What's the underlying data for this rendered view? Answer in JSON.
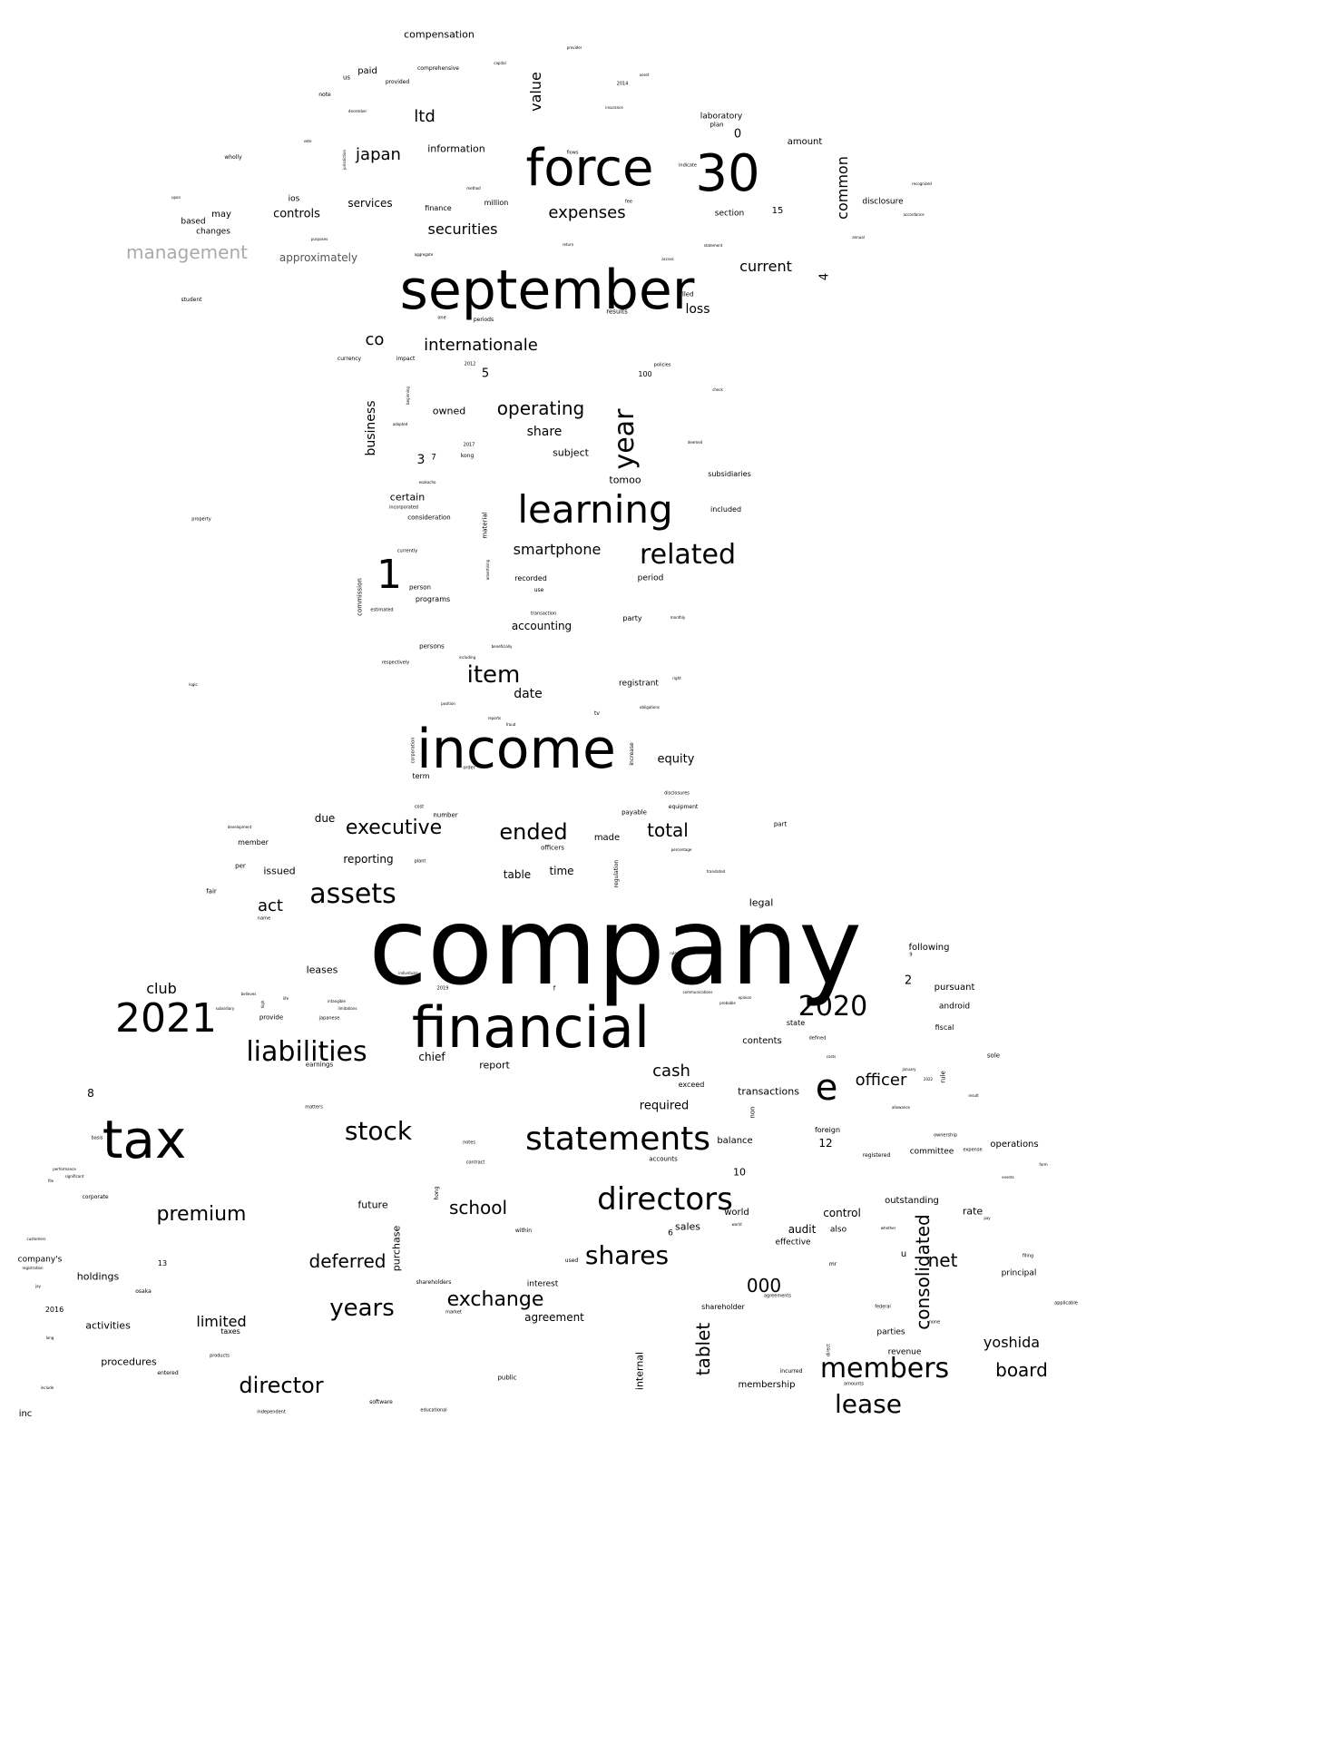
{
  "colors": {
    "background": "#ffffff",
    "word": "#000000",
    "word_muted": "#aaaaaa",
    "word_gray": "#555555"
  },
  "words": [
    "company",
    "financial",
    "september",
    "income",
    "force",
    "30",
    "tax",
    "2021",
    "learning",
    "statements",
    "directors",
    "2020",
    "liabilities",
    "assets",
    "related",
    "1",
    "shares",
    "members",
    "lease",
    "stock",
    "e",
    "year",
    "item",
    "management",
    "director",
    "years",
    "exchange",
    "premium",
    "school",
    "executive",
    "ended",
    "total",
    "deferred",
    "000",
    "consolidated",
    "tablet",
    "net",
    "board",
    "yoshida",
    "operating",
    "internationale",
    "japan",
    "ltd",
    "value",
    "expenses",
    "securities",
    "current",
    "smartphone",
    "cash",
    "officer",
    "limited",
    "club",
    "act",
    "co",
    "common",
    "business",
    "compensation",
    "controls",
    "services",
    "information",
    "approximately",
    "loss",
    "share",
    "subject",
    "tomoo",
    "certain",
    "owned",
    "accounting",
    "date",
    "equity",
    "reporting",
    "issued",
    "table",
    "time",
    "chief",
    "report",
    "required",
    "transactions",
    "control",
    "audit",
    "outstanding",
    "rate",
    "operations",
    "committee",
    "holdings",
    "activities",
    "procedures",
    "future",
    "purchase",
    "internal",
    "membership",
    "parties",
    "revenue",
    "principal",
    "android",
    "pursuant",
    "following",
    "fiscal",
    "legal",
    "leases",
    "contents",
    "state",
    "balance",
    "foreign",
    "12",
    "10",
    "world",
    "sales",
    "effective",
    "also",
    "agreement",
    "interest",
    "shareholder",
    "2",
    "3",
    "4",
    "5",
    "7",
    "0",
    "15",
    "amount",
    "laboratory",
    "plan",
    "section",
    "disclosure",
    "million",
    "finance",
    "ios",
    "may",
    "based",
    "changes",
    "paid",
    "us",
    "provided",
    "comprehensive",
    "note",
    "wholly",
    "student",
    "currency",
    "impact",
    "2012",
    "100",
    "policies",
    "filed",
    "results",
    "periods",
    "one",
    "subsidiaries",
    "included",
    "commission",
    "material",
    "recorded",
    "use",
    "period",
    "party",
    "programs",
    "person",
    "persons",
    "respectively",
    "registrant",
    "term",
    "order",
    "increase",
    "corporation",
    "due",
    "member",
    "per",
    "fair",
    "name",
    "made",
    "officers",
    "regulation",
    "number",
    "cost",
    "payable",
    "equipment",
    "part",
    "disclosures",
    "accounts",
    "exceed",
    "non",
    "provide",
    "japanese",
    "earnings",
    "matters",
    "notes",
    "contract",
    "basis",
    "corporate",
    "company's",
    "inc",
    "13",
    "2016",
    "osaka",
    "taxes",
    "products",
    "entered",
    "shareholders",
    "market",
    "public",
    "software",
    "educational",
    "independent",
    "within",
    "used",
    "incurred",
    "amounts",
    "direct",
    "federal",
    "none",
    "applicable",
    "filing",
    "rule",
    "sole",
    "defined",
    "registered",
    "expense",
    "ownership",
    "agreements",
    "2019",
    "f",
    "u",
    "6",
    "8",
    "9",
    "mr",
    "hong",
    "kong",
    "2017",
    "consideration",
    "incorporated",
    "currently",
    "estimated",
    "transaction",
    "monthly",
    "including",
    "beneficially",
    "position",
    "reports",
    "fraud",
    "tv",
    "obligations",
    "right",
    "esakacho",
    "advertising",
    "2014",
    "asset",
    "insurance",
    "december",
    "capital",
    "provider",
    "flows",
    "indicate",
    "method",
    "fee",
    "return",
    "aggregate",
    "upon",
    "statement",
    "access",
    "annual",
    "accordance",
    "recognized",
    "jurisdiction",
    "development",
    "plant",
    "percentage",
    "translated",
    "individuals",
    "intangible",
    "limitations",
    "believes",
    "subsidiary",
    "life",
    "high",
    "rules",
    "communications",
    "opinion",
    "probable",
    "costs",
    "january",
    "2022",
    "allowance",
    "result",
    "whether",
    "world",
    "customers",
    "registration",
    "jay",
    "long",
    "include",
    "significant",
    "performance",
    "file",
    "events",
    "form",
    "pay",
    "check",
    "deemed",
    "adopted",
    "beginning",
    "property",
    "logic",
    "vote",
    "purposes",
    "student"
  ]
}
